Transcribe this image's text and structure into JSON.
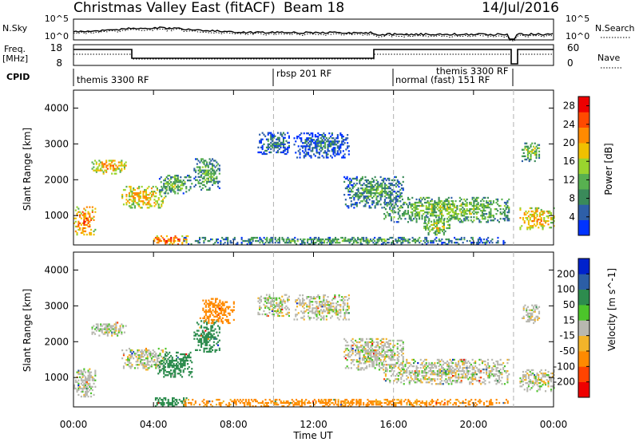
{
  "header": {
    "station": "Christmas Valley East (fitACF)",
    "beam": "Beam 18",
    "date": "14/Jul/2016"
  },
  "top_panel": {
    "left_label": "N.Sky",
    "right_label": "N.Search",
    "left_ticks": [
      "10^5",
      "10^0"
    ],
    "right_ticks": [
      "10^5",
      "10^0"
    ]
  },
  "freq_panel": {
    "left_label_1": "Freq.",
    "left_label_2": "[MHz]",
    "right_label": "Nave",
    "left_ticks": [
      "18",
      "8"
    ],
    "right_ticks": [
      "60",
      "0"
    ]
  },
  "cpid": {
    "label": "CPID",
    "segments": [
      {
        "name": "themis 3300 RF",
        "start_h": 0.0,
        "end_h": 10.0
      },
      {
        "name": "rbsp 201 RF",
        "start_h": 10.0,
        "end_h": 16.0
      },
      {
        "name": "normal (fast) 151 RF",
        "start_h": 16.0,
        "end_h": 22.0
      },
      {
        "name": "themis 3300 RF",
        "start_h": 17.5,
        "end_h": 22.0
      }
    ]
  },
  "axes": {
    "x_label": "Time UT",
    "x_ticks": [
      "00:00",
      "04:00",
      "08:00",
      "12:00",
      "16:00",
      "20:00",
      "00:00"
    ],
    "y_label": "Slant Range [km]",
    "y_ticks": [
      "1000",
      "2000",
      "3000",
      "4000"
    ]
  },
  "colors": {
    "power_scale": [
      "#0033ff",
      "#2e5fa8",
      "#3a8a5a",
      "#58b050",
      "#9ad42e",
      "#f0c000",
      "#ff8a00",
      "#ff4a00",
      "#ee0000"
    ],
    "velocity_scale": [
      "#0022cc",
      "#2c5ea6",
      "#2d8c4e",
      "#4cc42a",
      "#b8b8b0",
      "#f2b42a",
      "#ff8a00",
      "#ff4400",
      "#ee0000"
    ]
  },
  "chart_data": [
    {
      "type": "heatmap",
      "title": "",
      "xlabel": "Time UT",
      "ylabel": "Slant Range [km]",
      "xlim": [
        0,
        24
      ],
      "ylim": [
        180,
        4500
      ],
      "colorbar": {
        "label": "Power [dB]",
        "ticks": [
          "4",
          "8",
          "12",
          "16",
          "20",
          "24",
          "28"
        ],
        "range": [
          0,
          30
        ]
      },
      "regions": [
        {
          "t0": 0.0,
          "t1": 1.1,
          "r0": 450,
          "r1": 1250,
          "value": 24
        },
        {
          "t0": 0.9,
          "t1": 2.6,
          "r0": 2150,
          "r1": 2550,
          "value": 22
        },
        {
          "t0": 2.4,
          "t1": 4.6,
          "r0": 1200,
          "r1": 1800,
          "value": 21
        },
        {
          "t0": 4.2,
          "t1": 5.9,
          "r0": 1600,
          "r1": 2100,
          "value": 14
        },
        {
          "t0": 6.0,
          "t1": 7.3,
          "r0": 1700,
          "r1": 2600,
          "value": 13
        },
        {
          "t0": 9.2,
          "t1": 10.8,
          "r0": 2700,
          "r1": 3300,
          "value": 9
        },
        {
          "t0": 11.0,
          "t1": 13.8,
          "r0": 2600,
          "r1": 3300,
          "value": 8
        },
        {
          "t0": 13.5,
          "t1": 16.5,
          "r0": 1200,
          "r1": 2100,
          "value": 12
        },
        {
          "t0": 15.5,
          "t1": 21.8,
          "r0": 800,
          "r1": 1500,
          "value": 15
        },
        {
          "t0": 17.5,
          "t1": 18.8,
          "r0": 450,
          "r1": 900,
          "value": 17
        },
        {
          "t0": 4.0,
          "t1": 5.7,
          "r0": 180,
          "r1": 420,
          "value": 26
        },
        {
          "t0": 5.5,
          "t1": 21.8,
          "r0": 180,
          "r1": 380,
          "value": 12
        },
        {
          "t0": 22.3,
          "t1": 24.0,
          "r0": 600,
          "r1": 1200,
          "value": 22
        },
        {
          "t0": 22.4,
          "t1": 23.3,
          "r0": 2500,
          "r1": 3000,
          "value": 16
        }
      ]
    },
    {
      "type": "heatmap",
      "title": "",
      "xlabel": "Time UT",
      "ylabel": "Slant Range [km]",
      "xlim": [
        0,
        24
      ],
      "ylim": [
        180,
        4500
      ],
      "colorbar": {
        "label": "Velocity [m s^-1]",
        "ticks": [
          "200",
          "100",
          "50",
          "15",
          "-15",
          "-50",
          "-100",
          "-200"
        ],
        "range": [
          -250,
          250
        ]
      },
      "regions": [
        {
          "t0": 0.0,
          "t1": 1.1,
          "r0": 450,
          "r1": 1250,
          "value": 0
        },
        {
          "t0": 0.9,
          "t1": 2.6,
          "r0": 2150,
          "r1": 2550,
          "value": 0
        },
        {
          "t0": 2.4,
          "t1": 4.6,
          "r0": 1200,
          "r1": 1800,
          "value": 0
        },
        {
          "t0": 4.2,
          "t1": 5.9,
          "r0": 1000,
          "r1": 1700,
          "value": 55
        },
        {
          "t0": 6.0,
          "t1": 7.3,
          "r0": 1700,
          "r1": 2600,
          "value": 60
        },
        {
          "t0": 6.3,
          "t1": 8.0,
          "r0": 2500,
          "r1": 3200,
          "value": -60
        },
        {
          "t0": 9.2,
          "t1": 10.8,
          "r0": 2700,
          "r1": 3300,
          "value": 0
        },
        {
          "t0": 11.0,
          "t1": 13.8,
          "r0": 2600,
          "r1": 3300,
          "value": 0
        },
        {
          "t0": 13.5,
          "t1": 16.5,
          "r0": 1200,
          "r1": 2100,
          "value": 0
        },
        {
          "t0": 15.5,
          "t1": 21.8,
          "r0": 800,
          "r1": 1500,
          "value": 0
        },
        {
          "t0": 4.0,
          "t1": 5.7,
          "r0": 180,
          "r1": 420,
          "value": 60
        },
        {
          "t0": 5.5,
          "t1": 21.8,
          "r0": 180,
          "r1": 380,
          "value": -40
        },
        {
          "t0": 22.3,
          "t1": 24.0,
          "r0": 600,
          "r1": 1200,
          "value": 0
        },
        {
          "t0": 22.4,
          "t1": 23.3,
          "r0": 2500,
          "r1": 3000,
          "value": 0
        }
      ]
    }
  ]
}
